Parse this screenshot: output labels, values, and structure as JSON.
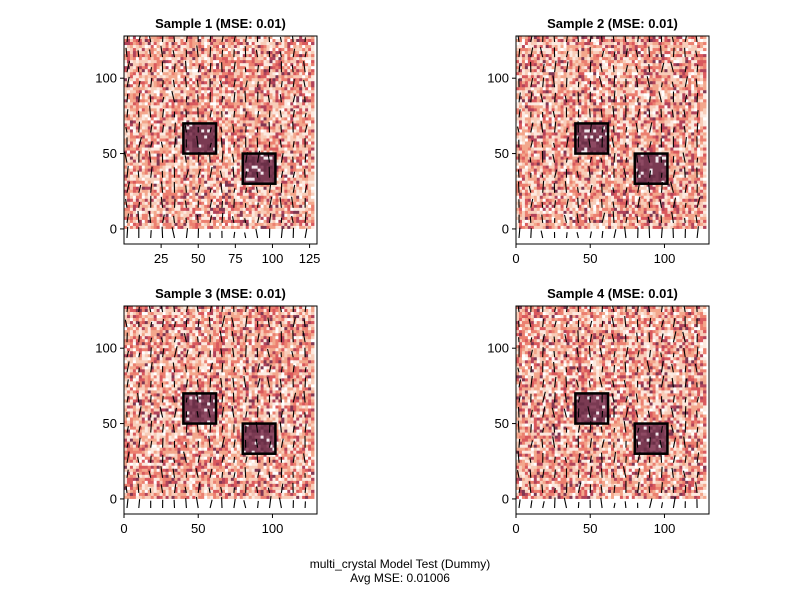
{
  "figure": {
    "caption_line1": "multi_crystal Model Test (Dummy)",
    "caption_line2": "Avg MSE: 0.01006"
  },
  "colors": {
    "heatmap_palette": [
      "#fce9df",
      "#f8cdb9",
      "#f3a78c",
      "#ec8070",
      "#d9595d",
      "#b1435a",
      "#7f3752",
      "#522a3f",
      "#ffffff"
    ],
    "crystal_fill": "#7a3a52",
    "crystal_outline": "#000000",
    "vector_stroke": "#000000",
    "axis": "#000000"
  },
  "chart_data": [
    {
      "type": "heatmap",
      "title": "Sample 1 (MSE: 0.01)",
      "xlim": [
        0,
        130
      ],
      "ylim": [
        -10,
        128
      ],
      "xticks": [
        25,
        50,
        75,
        100,
        125
      ],
      "yticks": [
        0,
        50,
        100
      ],
      "crystals": [
        {
          "x0": 40,
          "x1": 62,
          "y0": 50,
          "y1": 70
        },
        {
          "x0": 80,
          "x1": 102,
          "y0": 30,
          "y1": 50
        }
      ],
      "grid_extent": [
        0,
        128
      ]
    },
    {
      "type": "heatmap",
      "title": "Sample 2 (MSE: 0.01)",
      "xlim": [
        0,
        130
      ],
      "ylim": [
        -10,
        128
      ],
      "xticks": [
        0,
        50,
        100
      ],
      "yticks": [
        0,
        50,
        100
      ],
      "crystals": [
        {
          "x0": 40,
          "x1": 62,
          "y0": 50,
          "y1": 70
        },
        {
          "x0": 80,
          "x1": 102,
          "y0": 30,
          "y1": 50
        }
      ],
      "grid_extent": [
        0,
        128
      ]
    },
    {
      "type": "heatmap",
      "title": "Sample 3 (MSE: 0.01)",
      "xlim": [
        0,
        130
      ],
      "ylim": [
        -10,
        128
      ],
      "xticks": [
        0,
        50,
        100
      ],
      "yticks": [
        0,
        50,
        100
      ],
      "crystals": [
        {
          "x0": 40,
          "x1": 62,
          "y0": 50,
          "y1": 70
        },
        {
          "x0": 80,
          "x1": 102,
          "y0": 30,
          "y1": 50
        }
      ],
      "grid_extent": [
        0,
        128
      ]
    },
    {
      "type": "heatmap",
      "title": "Sample 4 (MSE: 0.01)",
      "xlim": [
        0,
        130
      ],
      "ylim": [
        -10,
        128
      ],
      "xticks": [
        0,
        50,
        100
      ],
      "yticks": [
        0,
        50,
        100
      ],
      "crystals": [
        {
          "x0": 40,
          "x1": 62,
          "y0": 50,
          "y1": 70
        },
        {
          "x0": 80,
          "x1": 102,
          "y0": 30,
          "y1": 50
        }
      ],
      "grid_extent": [
        0,
        128
      ]
    }
  ]
}
